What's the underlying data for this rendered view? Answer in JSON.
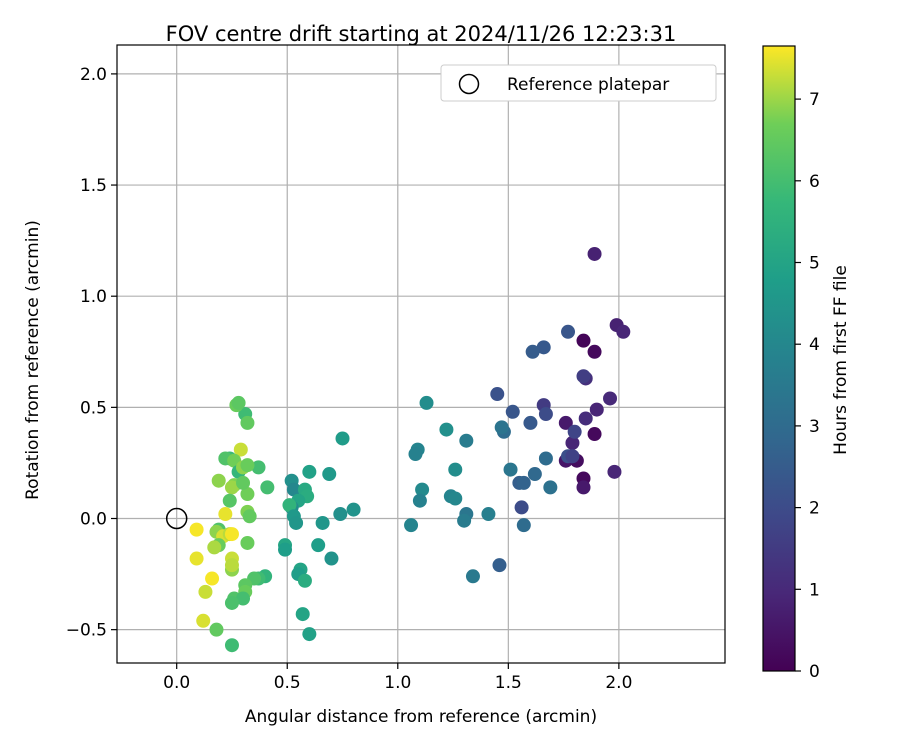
{
  "chart_data": {
    "type": "scatter",
    "title": "FOV centre drift starting at 2024/11/26 12:23:31",
    "xlabel": "Angular distance from reference (arcmin)",
    "ylabel": "Rotation from reference (arcmin)",
    "xlim": [
      -0.27,
      2.48
    ],
    "ylim": [
      -0.65,
      2.13
    ],
    "xticks": [
      0.0,
      0.5,
      1.0,
      1.5,
      2.0
    ],
    "xtick_labels": [
      "0.0",
      "0.5",
      "1.0",
      "1.5",
      "2.0"
    ],
    "yticks": [
      -0.5,
      0.0,
      0.5,
      1.0,
      1.5,
      2.0
    ],
    "ytick_labels": [
      "−0.5",
      "0.0",
      "0.5",
      "1.0",
      "1.5",
      "2.0"
    ],
    "grid": true,
    "legend": {
      "position": "top-right",
      "entries": [
        "Reference platepar"
      ]
    },
    "reference_point": {
      "x": 0.0,
      "y": 0.0,
      "label": "Reference platepar"
    },
    "colorbar": {
      "label": "Hours from first FF file",
      "colormap": "viridis",
      "range": [
        0,
        7.65
      ],
      "ticks": [
        0,
        1,
        2,
        3,
        4,
        5,
        6,
        7
      ],
      "tick_labels": [
        "0",
        "1",
        "2",
        "3",
        "4",
        "5",
        "6",
        "7"
      ]
    },
    "points": [
      {
        "x": 1.89,
        "y": 1.19,
        "c": 0.8
      },
      {
        "x": 1.99,
        "y": 0.87,
        "c": 0.8
      },
      {
        "x": 2.02,
        "y": 0.84,
        "c": 0.9
      },
      {
        "x": 1.84,
        "y": 0.8,
        "c": 0.1
      },
      {
        "x": 1.89,
        "y": 0.75,
        "c": 0.2
      },
      {
        "x": 1.96,
        "y": 0.54,
        "c": 1.0
      },
      {
        "x": 1.9,
        "y": 0.49,
        "c": 0.9
      },
      {
        "x": 1.85,
        "y": 0.63,
        "c": 1.2
      },
      {
        "x": 1.84,
        "y": 0.64,
        "c": 1.6
      },
      {
        "x": 1.85,
        "y": 0.45,
        "c": 1.1
      },
      {
        "x": 1.76,
        "y": 0.43,
        "c": 0.6
      },
      {
        "x": 1.89,
        "y": 0.38,
        "c": 0.2
      },
      {
        "x": 1.81,
        "y": 0.26,
        "c": 0.3
      },
      {
        "x": 1.79,
        "y": 0.34,
        "c": 0.9
      },
      {
        "x": 1.84,
        "y": 0.18,
        "c": 0.2
      },
      {
        "x": 1.84,
        "y": 0.14,
        "c": 0.6
      },
      {
        "x": 1.76,
        "y": 0.26,
        "c": 0.5
      },
      {
        "x": 1.98,
        "y": 0.21,
        "c": 0.9
      },
      {
        "x": 1.8,
        "y": 0.39,
        "c": 1.8
      },
      {
        "x": 1.77,
        "y": 0.28,
        "c": 2.1
      },
      {
        "x": 1.79,
        "y": 0.28,
        "c": 1.7
      },
      {
        "x": 1.77,
        "y": 0.84,
        "c": 2.3
      },
      {
        "x": 1.66,
        "y": 0.77,
        "c": 2.4
      },
      {
        "x": 1.61,
        "y": 0.75,
        "c": 2.5
      },
      {
        "x": 1.66,
        "y": 0.51,
        "c": 1.5
      },
      {
        "x": 1.67,
        "y": 0.47,
        "c": 2.0
      },
      {
        "x": 1.6,
        "y": 0.43,
        "c": 2.4
      },
      {
        "x": 1.52,
        "y": 0.48,
        "c": 2.3
      },
      {
        "x": 1.45,
        "y": 0.56,
        "c": 2.2
      },
      {
        "x": 1.48,
        "y": 0.39,
        "c": 3.0
      },
      {
        "x": 1.47,
        "y": 0.41,
        "c": 3.3
      },
      {
        "x": 1.67,
        "y": 0.27,
        "c": 3.0
      },
      {
        "x": 1.62,
        "y": 0.2,
        "c": 2.9
      },
      {
        "x": 1.55,
        "y": 0.16,
        "c": 2.6
      },
      {
        "x": 1.57,
        "y": 0.16,
        "c": 2.7
      },
      {
        "x": 1.51,
        "y": 0.22,
        "c": 3.4
      },
      {
        "x": 1.69,
        "y": 0.14,
        "c": 3.2
      },
      {
        "x": 1.56,
        "y": 0.05,
        "c": 2.0
      },
      {
        "x": 1.57,
        "y": -0.03,
        "c": 3.0
      },
      {
        "x": 1.46,
        "y": -0.21,
        "c": 2.6
      },
      {
        "x": 1.41,
        "y": 0.02,
        "c": 3.7
      },
      {
        "x": 1.34,
        "y": -0.26,
        "c": 3.5
      },
      {
        "x": 1.31,
        "y": 0.02,
        "c": 3.4
      },
      {
        "x": 1.3,
        "y": -0.01,
        "c": 3.6
      },
      {
        "x": 1.31,
        "y": 0.35,
        "c": 3.6
      },
      {
        "x": 1.22,
        "y": 0.4,
        "c": 4.3
      },
      {
        "x": 1.26,
        "y": 0.22,
        "c": 4.2
      },
      {
        "x": 1.13,
        "y": 0.52,
        "c": 4.2
      },
      {
        "x": 1.09,
        "y": 0.31,
        "c": 3.9
      },
      {
        "x": 1.08,
        "y": 0.29,
        "c": 3.8
      },
      {
        "x": 1.11,
        "y": 0.13,
        "c": 4.1
      },
      {
        "x": 1.1,
        "y": 0.08,
        "c": 3.8
      },
      {
        "x": 1.24,
        "y": 0.1,
        "c": 3.9
      },
      {
        "x": 1.26,
        "y": 0.09,
        "c": 4.0
      },
      {
        "x": 1.06,
        "y": -0.03,
        "c": 3.9
      },
      {
        "x": 0.75,
        "y": 0.36,
        "c": 4.7
      },
      {
        "x": 0.69,
        "y": 0.2,
        "c": 4.6
      },
      {
        "x": 0.8,
        "y": 0.04,
        "c": 4.4
      },
      {
        "x": 0.74,
        "y": 0.02,
        "c": 4.3
      },
      {
        "x": 0.66,
        "y": -0.02,
        "c": 4.5
      },
      {
        "x": 0.64,
        "y": -0.12,
        "c": 4.8
      },
      {
        "x": 0.7,
        "y": -0.18,
        "c": 4.4
      },
      {
        "x": 0.6,
        "y": 0.21,
        "c": 4.9
      },
      {
        "x": 0.52,
        "y": 0.17,
        "c": 4.3
      },
      {
        "x": 0.53,
        "y": 0.13,
        "c": 4.0
      },
      {
        "x": 0.58,
        "y": 0.13,
        "c": 5.2
      },
      {
        "x": 0.59,
        "y": 0.1,
        "c": 5.3
      },
      {
        "x": 0.55,
        "y": 0.08,
        "c": 5.0
      },
      {
        "x": 0.52,
        "y": 0.05,
        "c": 4.2
      },
      {
        "x": 0.51,
        "y": 0.06,
        "c": 5.6
      },
      {
        "x": 0.53,
        "y": 0.01,
        "c": 4.6
      },
      {
        "x": 0.54,
        "y": -0.02,
        "c": 4.5
      },
      {
        "x": 0.49,
        "y": -0.12,
        "c": 5.1
      },
      {
        "x": 0.49,
        "y": -0.14,
        "c": 4.8
      },
      {
        "x": 0.56,
        "y": -0.23,
        "c": 5.0
      },
      {
        "x": 0.55,
        "y": -0.25,
        "c": 4.8
      },
      {
        "x": 0.58,
        "y": -0.28,
        "c": 5.3
      },
      {
        "x": 0.57,
        "y": -0.43,
        "c": 5.0
      },
      {
        "x": 0.6,
        "y": -0.52,
        "c": 4.9
      },
      {
        "x": 0.41,
        "y": 0.14,
        "c": 6.0
      },
      {
        "x": 0.37,
        "y": 0.23,
        "c": 6.0
      },
      {
        "x": 0.4,
        "y": -0.26,
        "c": 5.6
      },
      {
        "x": 0.37,
        "y": -0.27,
        "c": 5.9
      },
      {
        "x": 0.35,
        "y": -0.27,
        "c": 6.2
      },
      {
        "x": 0.31,
        "y": 0.47,
        "c": 5.9
      },
      {
        "x": 0.32,
        "y": 0.43,
        "c": 6.5
      },
      {
        "x": 0.27,
        "y": 0.51,
        "c": 6.6
      },
      {
        "x": 0.28,
        "y": 0.52,
        "c": 6.4
      },
      {
        "x": 0.29,
        "y": 0.31,
        "c": 7.3
      },
      {
        "x": 0.24,
        "y": 0.27,
        "c": 5.8
      },
      {
        "x": 0.22,
        "y": 0.27,
        "c": 6.2
      },
      {
        "x": 0.26,
        "y": 0.26,
        "c": 6.7
      },
      {
        "x": 0.28,
        "y": 0.21,
        "c": 5.7
      },
      {
        "x": 0.3,
        "y": 0.23,
        "c": 6.9
      },
      {
        "x": 0.32,
        "y": 0.24,
        "c": 6.6
      },
      {
        "x": 0.19,
        "y": 0.17,
        "c": 6.9
      },
      {
        "x": 0.26,
        "y": 0.15,
        "c": 6.8
      },
      {
        "x": 0.25,
        "y": 0.14,
        "c": 7.0
      },
      {
        "x": 0.32,
        "y": 0.11,
        "c": 6.7
      },
      {
        "x": 0.3,
        "y": 0.16,
        "c": 6.5
      },
      {
        "x": 0.24,
        "y": 0.08,
        "c": 6.3
      },
      {
        "x": 0.32,
        "y": 0.03,
        "c": 6.8
      },
      {
        "x": 0.33,
        "y": 0.01,
        "c": 6.5
      },
      {
        "x": 0.22,
        "y": 0.02,
        "c": 7.5
      },
      {
        "x": 0.19,
        "y": -0.05,
        "c": 6.2
      },
      {
        "x": 0.18,
        "y": -0.06,
        "c": 6.9
      },
      {
        "x": 0.21,
        "y": -0.08,
        "c": 7.4
      },
      {
        "x": 0.24,
        "y": -0.07,
        "c": 7.2
      },
      {
        "x": 0.25,
        "y": -0.07,
        "c": 7.6
      },
      {
        "x": 0.19,
        "y": -0.12,
        "c": 6.6
      },
      {
        "x": 0.17,
        "y": -0.13,
        "c": 7.1
      },
      {
        "x": 0.32,
        "y": -0.11,
        "c": 6.6
      },
      {
        "x": 0.09,
        "y": -0.05,
        "c": 7.6
      },
      {
        "x": 0.09,
        "y": -0.18,
        "c": 7.5
      },
      {
        "x": 0.25,
        "y": -0.18,
        "c": 7.3
      },
      {
        "x": 0.25,
        "y": -0.23,
        "c": 6.9
      },
      {
        "x": 0.25,
        "y": -0.21,
        "c": 7.2
      },
      {
        "x": 0.16,
        "y": -0.27,
        "c": 7.6
      },
      {
        "x": 0.13,
        "y": -0.33,
        "c": 7.3
      },
      {
        "x": 0.31,
        "y": -0.3,
        "c": 6.4
      },
      {
        "x": 0.31,
        "y": -0.33,
        "c": 6.6
      },
      {
        "x": 0.26,
        "y": -0.36,
        "c": 6.2
      },
      {
        "x": 0.3,
        "y": -0.36,
        "c": 6.0
      },
      {
        "x": 0.25,
        "y": -0.38,
        "c": 6.1
      },
      {
        "x": 0.12,
        "y": -0.46,
        "c": 7.4
      },
      {
        "x": 0.18,
        "y": -0.5,
        "c": 6.5
      },
      {
        "x": 0.25,
        "y": -0.57,
        "c": 5.9
      }
    ]
  }
}
